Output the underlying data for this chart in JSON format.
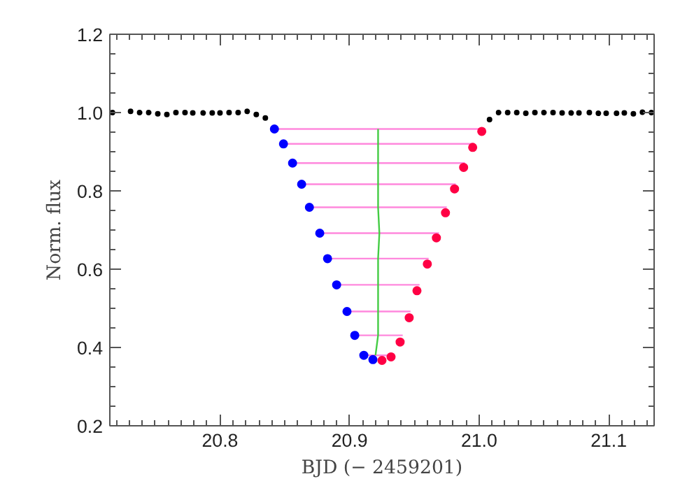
{
  "chart_data": {
    "type": "scatter",
    "xlabel": "BJD (− 2459201)",
    "ylabel": "Norm. flux",
    "xlim": [
      20.715,
      21.135
    ],
    "ylim": [
      0.2,
      1.2
    ],
    "xticks": [
      {
        "value": 20.72,
        "label": null
      },
      {
        "value": 20.73,
        "label": null
      },
      {
        "value": 20.74,
        "label": null
      },
      {
        "value": 20.75,
        "label": null
      },
      {
        "value": 20.76,
        "label": null
      },
      {
        "value": 20.77,
        "label": null
      },
      {
        "value": 20.78,
        "label": null
      },
      {
        "value": 20.79,
        "label": null
      },
      {
        "value": 20.8,
        "label": "20.8"
      },
      {
        "value": 20.81,
        "label": null
      },
      {
        "value": 20.82,
        "label": null
      },
      {
        "value": 20.83,
        "label": null
      },
      {
        "value": 20.84,
        "label": null
      },
      {
        "value": 20.85,
        "label": null
      },
      {
        "value": 20.86,
        "label": null
      },
      {
        "value": 20.87,
        "label": null
      },
      {
        "value": 20.88,
        "label": null
      },
      {
        "value": 20.89,
        "label": null
      },
      {
        "value": 20.9,
        "label": "20.9"
      },
      {
        "value": 20.91,
        "label": null
      },
      {
        "value": 20.92,
        "label": null
      },
      {
        "value": 20.93,
        "label": null
      },
      {
        "value": 20.94,
        "label": null
      },
      {
        "value": 20.95,
        "label": null
      },
      {
        "value": 20.96,
        "label": null
      },
      {
        "value": 20.97,
        "label": null
      },
      {
        "value": 20.98,
        "label": null
      },
      {
        "value": 20.99,
        "label": null
      },
      {
        "value": 21.0,
        "label": "21.0"
      },
      {
        "value": 21.01,
        "label": null
      },
      {
        "value": 21.02,
        "label": null
      },
      {
        "value": 21.03,
        "label": null
      },
      {
        "value": 21.04,
        "label": null
      },
      {
        "value": 21.05,
        "label": null
      },
      {
        "value": 21.06,
        "label": null
      },
      {
        "value": 21.07,
        "label": null
      },
      {
        "value": 21.08,
        "label": null
      },
      {
        "value": 21.09,
        "label": null
      },
      {
        "value": 21.1,
        "label": "21.1"
      },
      {
        "value": 21.11,
        "label": null
      },
      {
        "value": 21.12,
        "label": null
      },
      {
        "value": 21.13,
        "label": null
      }
    ],
    "yticks": [
      0.2,
      {
        "value": 0.25,
        "label": null
      },
      {
        "value": 0.3,
        "label": null
      },
      {
        "value": 0.35,
        "label": null
      },
      0.4,
      {
        "value": 0.45,
        "label": null
      },
      {
        "value": 0.5,
        "label": null
      },
      {
        "value": 0.55,
        "label": null
      },
      0.6,
      {
        "value": 0.65,
        "label": null
      },
      {
        "value": 0.7,
        "label": null
      },
      {
        "value": 0.75,
        "label": null
      },
      0.8,
      {
        "value": 0.85,
        "label": null
      },
      {
        "value": 0.9,
        "label": null
      },
      {
        "value": 0.95,
        "label": null
      },
      {
        "value": 1.0,
        "label": "1.0"
      },
      {
        "value": 1.05,
        "label": null
      },
      {
        "value": 1.1,
        "label": null
      },
      {
        "value": 1.15,
        "label": null
      },
      1.2
    ],
    "series": [
      {
        "marker": "circle",
        "color": "#000000",
        "x": [
          20.717,
          20.731,
          20.738,
          20.745,
          20.752,
          20.759,
          20.766,
          20.773,
          20.779,
          20.787,
          20.794,
          20.8,
          20.807,
          20.814,
          20.821,
          20.828,
          20.835,
          21.008,
          21.015,
          21.022,
          21.029,
          21.036,
          21.043,
          21.05,
          21.057,
          21.064,
          21.071,
          21.077,
          21.085,
          21.092,
          21.098,
          21.106,
          21.112,
          21.119,
          21.126,
          21.133
        ],
        "values": [
          1.0,
          1.003,
          1.0,
          1.0,
          0.997,
          0.995,
          1.0,
          1.0,
          0.999,
          0.999,
          0.999,
          0.999,
          1.0,
          1.0,
          1.003,
          0.995,
          0.986,
          0.982,
          1.0,
          1.0,
          1.0,
          0.998,
          1.0,
          1.0,
          1.0,
          0.999,
          0.999,
          0.999,
          1.0,
          0.998,
          0.998,
          0.998,
          0.999,
          0.997,
          1.001,
          1.0
        ]
      },
      {
        "type": "line",
        "color": "#ff88dd",
        "x": [
          20.842,
          21.001
        ],
        "values": [
          0.958,
          0.958
        ]
      },
      {
        "type": "line",
        "color": "#ff88dd",
        "x": [
          20.849,
          20.996
        ],
        "values": [
          0.92,
          0.92
        ]
      },
      {
        "type": "line",
        "color": "#ff88dd",
        "x": [
          20.856,
          20.989
        ],
        "values": [
          0.871,
          0.871
        ]
      },
      {
        "type": "line",
        "color": "#ff88dd",
        "x": [
          20.863,
          20.982
        ],
        "values": [
          0.817,
          0.817
        ]
      },
      {
        "type": "line",
        "color": "#ff88dd",
        "x": [
          20.869,
          20.975
        ],
        "values": [
          0.758,
          0.758
        ]
      },
      {
        "type": "line",
        "color": "#ff88dd",
        "x": [
          20.877,
          20.969
        ],
        "values": [
          0.692,
          0.692
        ]
      },
      {
        "type": "line",
        "color": "#ff88dd",
        "x": [
          20.883,
          20.961
        ],
        "values": [
          0.627,
          0.627
        ]
      },
      {
        "type": "line",
        "color": "#ff88dd",
        "x": [
          20.89,
          20.954
        ],
        "values": [
          0.56,
          0.56
        ]
      },
      {
        "type": "line",
        "color": "#ff88dd",
        "x": [
          20.898,
          20.947
        ],
        "values": [
          0.492,
          0.492
        ]
      },
      {
        "type": "line",
        "color": "#ff88dd",
        "x": [
          20.904,
          20.941
        ],
        "values": [
          0.431,
          0.431
        ]
      },
      {
        "type": "line",
        "color": "#ff88dd",
        "x": [
          20.911,
          20.929
        ],
        "values": [
          0.38,
          0.38
        ]
      },
      {
        "type": "line",
        "color": "#44cc44",
        "x": [
          20.922,
          20.922,
          20.922,
          20.922,
          20.922,
          20.923,
          20.922,
          20.922,
          20.922,
          20.922,
          20.92
        ],
        "values": [
          0.958,
          0.92,
          0.871,
          0.817,
          0.758,
          0.692,
          0.627,
          0.56,
          0.492,
          0.431,
          0.38
        ]
      },
      {
        "marker": "circle",
        "color": "#0000ff",
        "x": [
          20.842,
          20.849,
          20.856,
          20.863,
          20.869,
          20.877,
          20.883,
          20.89,
          20.898,
          20.904,
          20.911,
          20.918
        ],
        "values": [
          0.958,
          0.92,
          0.871,
          0.817,
          0.758,
          0.692,
          0.627,
          0.56,
          0.492,
          0.431,
          0.38,
          0.369
        ]
      },
      {
        "marker": "circle",
        "color": "#ff0044",
        "x": [
          21.002,
          20.995,
          20.988,
          20.981,
          20.974,
          20.967,
          20.96,
          20.952,
          20.946,
          20.939,
          20.932,
          20.925
        ],
        "values": [
          0.952,
          0.911,
          0.86,
          0.805,
          0.744,
          0.68,
          0.613,
          0.545,
          0.476,
          0.414,
          0.376,
          0.367
        ]
      }
    ]
  }
}
